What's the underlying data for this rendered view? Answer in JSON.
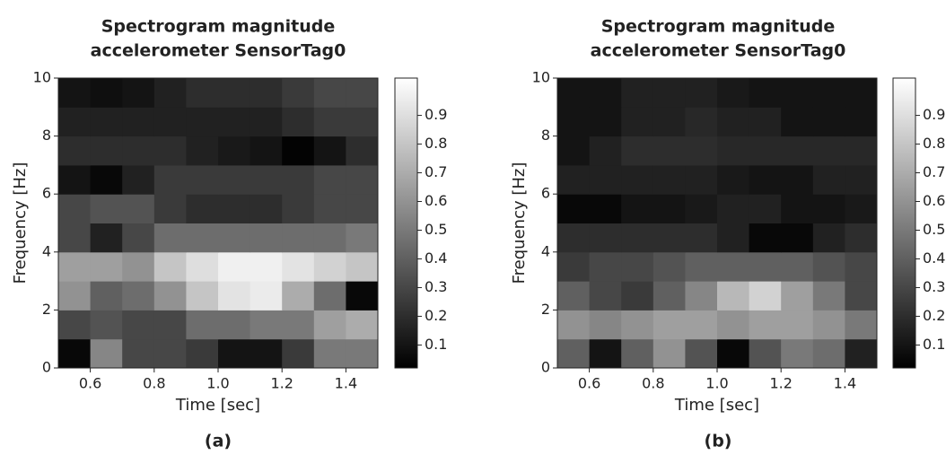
{
  "chart_data": [
    {
      "type": "heatmap",
      "title": [
        "Spectrogram magnitude",
        "accelerometer SensorTag0"
      ],
      "x_label": "Time [sec]",
      "y_label": "Frequency [Hz]",
      "caption": "(a)",
      "colormap": "gray",
      "x": [
        0.55,
        0.65,
        0.75,
        0.85,
        0.95,
        1.05,
        1.15,
        1.25,
        1.35,
        1.45
      ],
      "y": [
        0.5,
        1.5,
        2.5,
        3.5,
        4.5,
        5.5,
        6.5,
        7.5,
        8.5,
        9.5
      ],
      "z": [
        [
          0.05,
          0.55,
          0.3,
          0.3,
          0.25,
          0.1,
          0.1,
          0.25,
          0.5,
          0.5
        ],
        [
          0.3,
          0.35,
          0.3,
          0.3,
          0.45,
          0.45,
          0.5,
          0.5,
          0.65,
          0.7
        ],
        [
          0.6,
          0.4,
          0.45,
          0.6,
          0.8,
          0.92,
          0.95,
          0.7,
          0.45,
          0.05
        ],
        [
          0.65,
          0.65,
          0.6,
          0.8,
          0.9,
          0.97,
          0.97,
          0.92,
          0.85,
          0.8
        ],
        [
          0.3,
          0.15,
          0.3,
          0.45,
          0.45,
          0.45,
          0.45,
          0.45,
          0.45,
          0.5
        ],
        [
          0.3,
          0.35,
          0.35,
          0.25,
          0.2,
          0.2,
          0.2,
          0.25,
          0.3,
          0.3
        ],
        [
          0.1,
          0.05,
          0.15,
          0.25,
          0.25,
          0.25,
          0.25,
          0.25,
          0.3,
          0.3
        ],
        [
          0.2,
          0.2,
          0.2,
          0.2,
          0.15,
          0.12,
          0.1,
          0.03,
          0.1,
          0.2
        ],
        [
          0.15,
          0.15,
          0.15,
          0.15,
          0.15,
          0.15,
          0.15,
          0.2,
          0.25,
          0.25
        ],
        [
          0.1,
          0.08,
          0.1,
          0.15,
          0.2,
          0.2,
          0.2,
          0.25,
          0.3,
          0.3
        ]
      ],
      "xlim": [
        0.5,
        1.5
      ],
      "xticks": [
        0.6,
        0.8,
        {
          "value": 1,
          "label": "1.0"
        },
        1.2,
        1.4
      ],
      "ylim": [
        0,
        10
      ],
      "yticks": [
        0,
        2,
        4,
        6,
        8,
        10
      ],
      "clim": [
        0.02,
        1.03
      ],
      "cticks": [
        0.1,
        0.2,
        0.3,
        0.4,
        0.5,
        0.6,
        0.7,
        0.8,
        0.9
      ]
    },
    {
      "type": "heatmap",
      "title": [
        "Spectrogram magnitude",
        "accelerometer SensorTag0"
      ],
      "x_label": "Time [sec]",
      "y_label": "Frequency [Hz]",
      "caption": "(b)",
      "colormap": "gray",
      "x": [
        0.55,
        0.65,
        0.75,
        0.85,
        0.95,
        1.05,
        1.15,
        1.25,
        1.35,
        1.45
      ],
      "y": [
        0.5,
        1.5,
        2.5,
        3.5,
        4.5,
        5.5,
        6.5,
        7.5,
        8.5,
        9.5
      ],
      "z": [
        [
          0.4,
          0.1,
          0.4,
          0.6,
          0.35,
          0.05,
          0.35,
          0.5,
          0.45,
          0.15
        ],
        [
          0.6,
          0.55,
          0.6,
          0.65,
          0.65,
          0.6,
          0.65,
          0.65,
          0.6,
          0.5
        ],
        [
          0.4,
          0.3,
          0.25,
          0.4,
          0.55,
          0.75,
          0.85,
          0.65,
          0.5,
          0.3
        ],
        [
          0.25,
          0.3,
          0.3,
          0.35,
          0.4,
          0.4,
          0.4,
          0.4,
          0.35,
          0.3
        ],
        [
          0.2,
          0.2,
          0.2,
          0.2,
          0.2,
          0.15,
          0.05,
          0.05,
          0.15,
          0.2
        ],
        [
          0.05,
          0.05,
          0.1,
          0.1,
          0.12,
          0.15,
          0.15,
          0.1,
          0.1,
          0.12
        ],
        [
          0.15,
          0.15,
          0.15,
          0.15,
          0.15,
          0.12,
          0.1,
          0.1,
          0.15,
          0.15
        ],
        [
          0.1,
          0.15,
          0.2,
          0.2,
          0.2,
          0.18,
          0.18,
          0.18,
          0.18,
          0.18
        ],
        [
          0.1,
          0.1,
          0.15,
          0.15,
          0.18,
          0.15,
          0.15,
          0.1,
          0.1,
          0.1
        ],
        [
          0.1,
          0.1,
          0.15,
          0.15,
          0.15,
          0.12,
          0.1,
          0.1,
          0.1,
          0.1
        ]
      ],
      "xlim": [
        0.5,
        1.5
      ],
      "xticks": [
        0.6,
        0.8,
        {
          "value": 1,
          "label": "1.0"
        },
        1.2,
        1.4
      ],
      "ylim": [
        0,
        10
      ],
      "yticks": [
        0,
        2,
        4,
        6,
        8,
        10
      ],
      "clim": [
        0.02,
        1.03
      ],
      "cticks": [
        0.1,
        0.2,
        0.3,
        0.4,
        0.5,
        0.6,
        0.7,
        0.8,
        0.9
      ]
    }
  ]
}
